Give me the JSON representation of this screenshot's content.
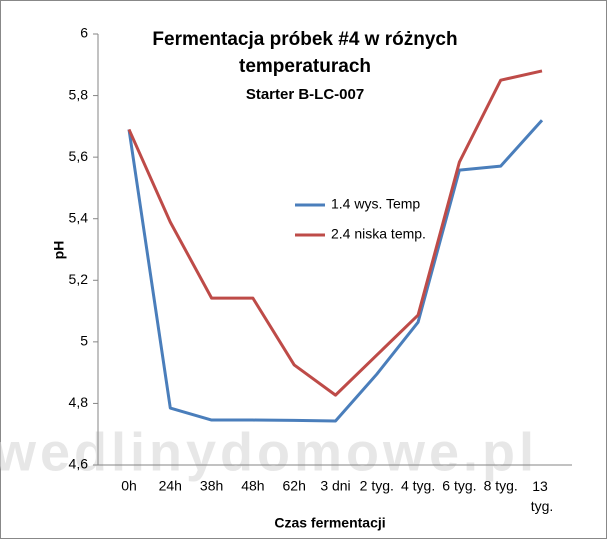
{
  "chart_data": {
    "type": "line",
    "title": "Fermentacja próbek #4 w różnych",
    "title_line2": "temperaturach",
    "subtitle": "Starter B-LC-007",
    "x_label": "Czas fermentacji",
    "y_label": "pH",
    "watermark": "wedlinydomowe.pl",
    "categories": [
      "0h",
      "24h",
      "38h",
      "48h",
      "62h",
      "3 dni",
      "2 tyg.",
      "4 tyg.",
      "6 tyg.",
      "8 tyg.",
      "13 tyg."
    ],
    "series": [
      {
        "name": "1.4 wys. Temp",
        "color": "#4a7ebb",
        "values": [
          5.69,
          4.785,
          4.746,
          4.746,
          4.745,
          4.743,
          4.895,
          5.064,
          5.558,
          5.571,
          5.72
        ]
      },
      {
        "name": "2.4 niska temp.",
        "color": "#be4b48",
        "values": [
          5.69,
          5.389,
          5.142,
          5.142,
          4.925,
          4.827,
          4.957,
          5.087,
          5.584,
          5.85,
          5.88
        ]
      }
    ],
    "ylim": [
      4.6,
      6
    ],
    "yticks": [
      {
        "value": 4.6,
        "label": "4,6"
      },
      {
        "value": 4.8,
        "label": "4,8"
      },
      5,
      {
        "value": 5.2,
        "label": "5,2"
      },
      {
        "value": 5.4,
        "label": "5,4"
      },
      {
        "value": 5.6,
        "label": "5,6"
      },
      {
        "value": 5.8,
        "label": "5,8"
      },
      6
    ],
    "grid": false
  }
}
